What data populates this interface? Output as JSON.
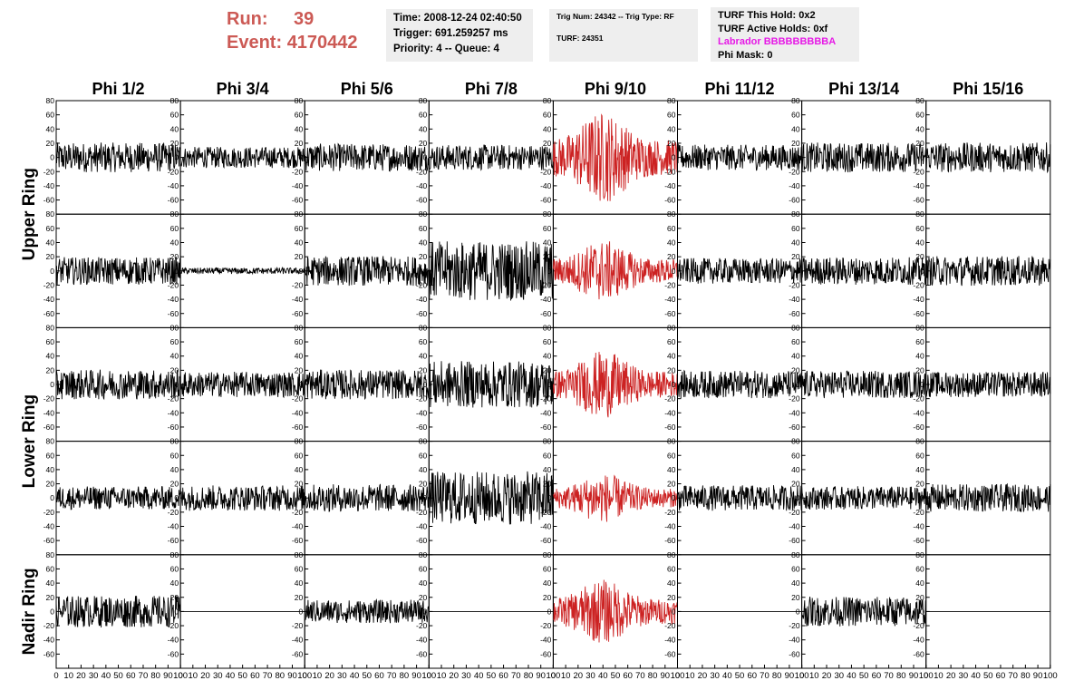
{
  "header": {
    "run_label": "Run:",
    "run_value": "39",
    "event_label": "Event:",
    "event_value": "4170442",
    "time": "Time: 2008-12-24 02:40:50",
    "trigger": "Trigger: 691.259257 ms",
    "priority": "Priority: 4 -- Queue: 4",
    "trig_num": "Trig Num: 24342 -- Trig Type: RF",
    "turf": "TURF: 24351",
    "turf_this_hold": "TURF This Hold: 0x2",
    "turf_active_holds": "TURF Active Holds: 0xf",
    "labrador": "Labrador BBBBBBBBBA",
    "phi_mask": "Phi Mask: 0"
  },
  "colors": {
    "header_red": "#cc5a55",
    "trace_default": "#000000",
    "trace_highlight": "#cc2222",
    "labrador": "#e619e6",
    "info_bg": "#eeeeee"
  },
  "chart_data": {
    "type": "line",
    "columns": [
      "Phi 1/2",
      "Phi 3/4",
      "Phi 5/6",
      "Phi 7/8",
      "Phi 9/10",
      "Phi 11/12",
      "Phi 13/14",
      "Phi 15/16"
    ],
    "row_labels": [
      "Upper Ring",
      "Lower Ring",
      "Nadir Ring"
    ],
    "rows": 5,
    "highlight_column": 4,
    "x_range": [
      0,
      100
    ],
    "y_range": [
      -80,
      80
    ],
    "y_ticks": [
      -60,
      -40,
      -20,
      0,
      20,
      40,
      60,
      80
    ],
    "x_ticks": [
      0,
      10,
      20,
      30,
      40,
      50,
      60,
      70,
      80,
      90,
      100
    ],
    "x_tick_labels": [
      "0",
      "10",
      "20",
      "30",
      "40",
      "50",
      "60",
      "70",
      "80",
      "90",
      "100"
    ],
    "amplitude": [
      [
        14,
        10,
        13,
        12,
        30,
        12,
        14,
        14
      ],
      [
        13,
        3,
        14,
        28,
        20,
        12,
        13,
        14
      ],
      [
        14,
        12,
        14,
        22,
        22,
        13,
        13,
        12
      ],
      [
        11,
        12,
        13,
        25,
        16,
        12,
        11,
        13
      ],
      [
        15,
        0,
        11,
        0,
        21,
        0,
        14,
        0
      ]
    ]
  }
}
